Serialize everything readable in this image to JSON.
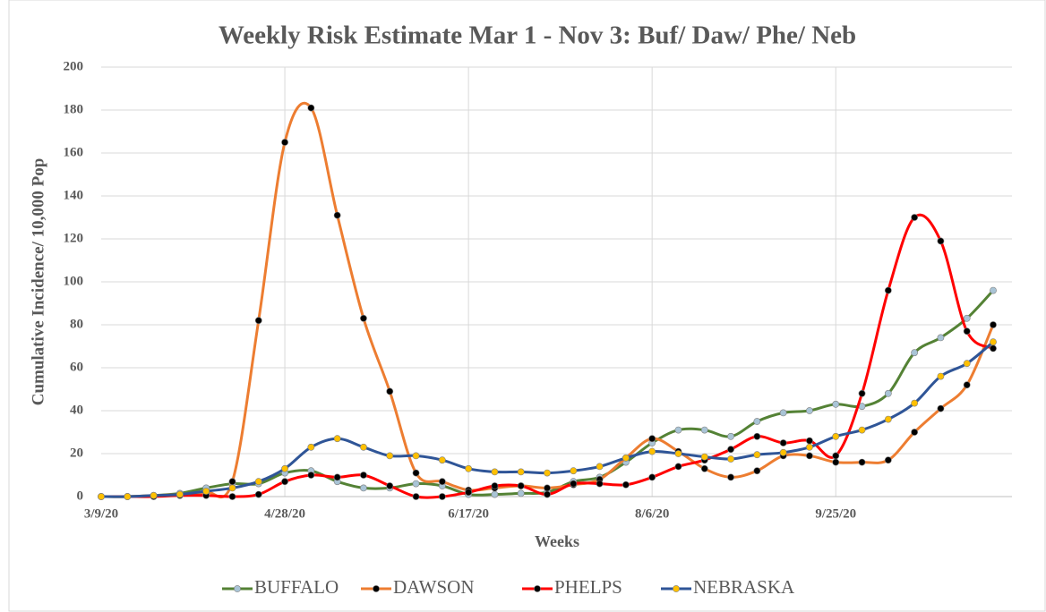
{
  "chart_data": {
    "type": "line",
    "title": "Weekly  Risk Estimate Mar 1 - Nov 3: Buf/ Daw/ Phe/ Neb",
    "xlabel": "Weeks",
    "ylabel": "Cumulative Incidence/ 10,000 Pop",
    "categories": [
      "3/9/20",
      null,
      null,
      null,
      null,
      null,
      null,
      "4/28/20",
      null,
      null,
      null,
      null,
      null,
      null,
      "6/17/20",
      null,
      null,
      null,
      null,
      null,
      null,
      "8/6/20",
      null,
      null,
      null,
      null,
      null,
      null,
      "9/25/20",
      null,
      null,
      null,
      null,
      null,
      null
    ],
    "ylim": [
      0,
      200
    ],
    "yticks": [
      0,
      20,
      40,
      60,
      80,
      100,
      120,
      140,
      160,
      180,
      200
    ],
    "grid": true,
    "smooth": true,
    "legend": "bottom",
    "series": [
      {
        "name": "BUFFALO",
        "color": "#548235",
        "marker_color": "#a9c4d6",
        "values": [
          0,
          0,
          0.5,
          1.5,
          4,
          6,
          6,
          11,
          12,
          7,
          4,
          4,
          6,
          5,
          1,
          1,
          1.5,
          2,
          7,
          9,
          16,
          25,
          31,
          31,
          28,
          35,
          39,
          40,
          43,
          42,
          48,
          67,
          74,
          83,
          96
        ]
      },
      {
        "name": "DAWSON",
        "color": "#ed7d31",
        "marker_color": "#000000",
        "values": [
          0,
          0,
          0.5,
          1,
          2,
          7,
          82,
          165,
          181,
          131,
          83,
          49,
          11,
          7,
          3,
          4,
          5,
          4,
          5.5,
          8,
          18,
          27,
          21,
          13,
          9,
          12,
          19,
          19,
          16,
          16,
          17,
          30,
          41,
          52,
          80
        ]
      },
      {
        "name": "PHELPS",
        "color": "#ff0000",
        "marker_color": "#000000",
        "values": [
          0,
          0,
          0,
          0.5,
          0.5,
          0,
          1,
          7,
          10,
          9,
          10,
          5,
          0,
          0,
          2,
          5,
          5,
          1,
          6,
          6,
          5.5,
          9,
          14,
          17,
          22,
          28,
          25,
          26,
          19,
          48,
          96,
          130,
          119,
          77,
          69
        ]
      },
      {
        "name": "NEBRASKA",
        "color": "#2f5597",
        "marker_color": "#ffc000",
        "values": [
          0,
          0,
          0.5,
          1,
          2.5,
          4,
          7,
          13,
          23,
          27,
          23,
          19,
          19,
          17,
          13,
          11.5,
          11.5,
          11,
          12,
          14,
          18,
          21,
          20,
          18.5,
          17.5,
          19.5,
          20.5,
          23,
          28,
          31,
          36,
          43.5,
          56,
          62,
          72
        ]
      }
    ]
  }
}
